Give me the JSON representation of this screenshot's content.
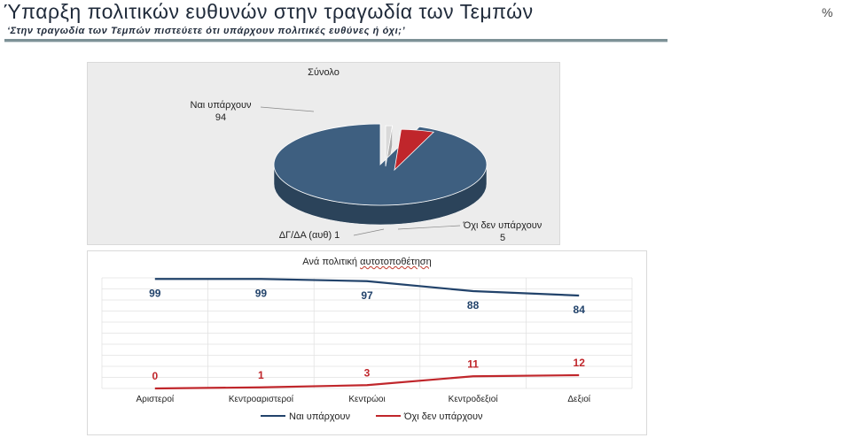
{
  "header": {
    "title": "Ύπαρξη πολιτικών ευθυνών στην τραγωδία των Τεμπών",
    "subtitle": "‘Στην τραγωδία των Τεμπών πιστεύετε ότι υπάρχουν πολιτικές ευθύνες ή όχι;’",
    "percent_sign": "%"
  },
  "colors": {
    "blue": "#3e5f80",
    "red": "#c0262b",
    "panel": "#ececec"
  },
  "chart_data": [
    {
      "type": "pie",
      "title": "Σύνολο",
      "slices": [
        {
          "label": "Ναι υπάρχουν",
          "value": 94,
          "color": "#3e5f80"
        },
        {
          "label": "Όχι δεν υπάρχουν",
          "value": 5,
          "color": "#c0262b"
        },
        {
          "label": "ΔΓ/ΔΑ (αυθ)",
          "value": 1,
          "color": "#d9d9d9"
        }
      ]
    },
    {
      "type": "line",
      "title_prefix": "Ανά πολιτική ",
      "title_suffix": "αυτοτοποθέτηση",
      "categories": [
        "Αριστεροί",
        "Κεντροαριστεροί",
        "Κεντρώοι",
        "Κεντροδεξιοί",
        "Δεξιοί"
      ],
      "series": [
        {
          "name": "Ναι υπάρχουν",
          "values": [
            99,
            99,
            97,
            88,
            84
          ],
          "color": "#22436b"
        },
        {
          "name": "Όχι δεν υπάρχουν",
          "values": [
            0,
            1,
            3,
            11,
            12
          ],
          "color": "#c0262b"
        }
      ],
      "ylim": [
        0,
        100
      ],
      "legend": "bottom",
      "grid": true
    }
  ]
}
